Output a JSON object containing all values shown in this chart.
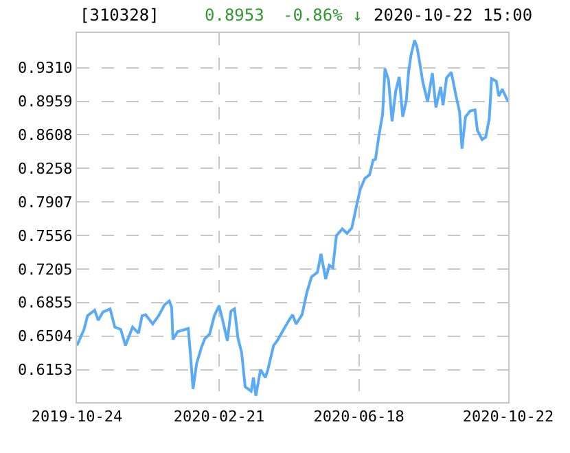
{
  "chart_data": {
    "type": "line",
    "title": "[310328]",
    "annotations": [
      "0.8953",
      "-0.86% ↓",
      "2020-10-22 15:00"
    ],
    "x": [
      "2019-10-24",
      "2019-10-30",
      "2019-11-02",
      "2019-11-08",
      "2019-11-11",
      "2019-11-15",
      "2019-11-21",
      "2019-11-25",
      "2019-11-30",
      "2019-12-04",
      "2019-12-10",
      "2019-12-15",
      "2019-12-18",
      "2019-12-21",
      "2019-12-27",
      "2020-01-01",
      "2020-01-06",
      "2020-01-10",
      "2020-01-12",
      "2020-01-13",
      "2020-01-17",
      "2020-01-26",
      "2020-01-28",
      "2020-01-30",
      "2020-02-02",
      "2020-02-06",
      "2020-02-09",
      "2020-02-13",
      "2020-02-17",
      "2020-02-21",
      "2020-02-24",
      "2020-02-28",
      "2020-03-02",
      "2020-03-05",
      "2020-03-08",
      "2020-03-11",
      "2020-03-14",
      "2020-03-19",
      "2020-03-21",
      "2020-03-23",
      "2020-03-27",
      "2020-03-31",
      "2020-04-02",
      "2020-04-07",
      "2020-04-10",
      "2020-04-15",
      "2020-04-20",
      "2020-04-23",
      "2020-04-26",
      "2020-05-01",
      "2020-05-05",
      "2020-05-09",
      "2020-05-14",
      "2020-05-17",
      "2020-05-21",
      "2020-05-24",
      "2020-05-27",
      "2020-05-30",
      "2020-06-04",
      "2020-06-08",
      "2020-06-12",
      "2020-06-16",
      "2020-06-19",
      "2020-06-23",
      "2020-06-27",
      "2020-06-30",
      "2020-07-02",
      "2020-07-05",
      "2020-07-08",
      "2020-07-10",
      "2020-07-13",
      "2020-07-16",
      "2020-07-19",
      "2020-07-22",
      "2020-07-25",
      "2020-07-28",
      "2020-07-30",
      "2020-08-01",
      "2020-08-04",
      "2020-08-06",
      "2020-08-08",
      "2020-08-11",
      "2020-08-15",
      "2020-08-19",
      "2020-08-22",
      "2020-08-26",
      "2020-08-28",
      "2020-08-31",
      "2020-09-04",
      "2020-09-08",
      "2020-09-11",
      "2020-09-13",
      "2020-09-16",
      "2020-09-20",
      "2020-09-24",
      "2020-09-26",
      "2020-09-30",
      "2020-10-03",
      "2020-10-06",
      "2020-10-08",
      "2020-10-12",
      "2020-10-14",
      "2020-10-17",
      "2020-10-22"
    ],
    "series": [
      {
        "color": "#5aaaf7",
        "values": [
          0.6406,
          0.6574,
          0.6717,
          0.6775,
          0.667,
          0.6756,
          0.6789,
          0.6598,
          0.6574,
          0.6406,
          0.6598,
          0.6535,
          0.6717,
          0.6727,
          0.6631,
          0.6717,
          0.6832,
          0.6871,
          0.6803,
          0.6469,
          0.655,
          0.6584,
          0.6287,
          0.5952,
          0.6215,
          0.6383,
          0.6478,
          0.6526,
          0.6717,
          0.6822,
          0.667,
          0.6455,
          0.6765,
          0.6789,
          0.6478,
          0.6334,
          0.5975,
          0.5928,
          0.6071,
          0.5881,
          0.6153,
          0.6071,
          0.6143,
          0.6406,
          0.6455,
          0.6563,
          0.667,
          0.6727,
          0.6631,
          0.6727,
          0.6957,
          0.7123,
          0.7172,
          0.7363,
          0.71,
          0.7244,
          0.7219,
          0.7554,
          0.7625,
          0.7578,
          0.7635,
          0.7865,
          0.8033,
          0.8152,
          0.8191,
          0.8343,
          0.8353,
          0.8607,
          0.8822,
          0.93,
          0.918,
          0.875,
          0.906,
          0.9214,
          0.8798,
          0.8966,
          0.9276,
          0.9443,
          0.9597,
          0.953,
          0.9386,
          0.9156,
          0.8956,
          0.9253,
          0.8894,
          0.9109,
          0.8917,
          0.9204,
          0.9261,
          0.9013,
          0.8845,
          0.8463,
          0.8798,
          0.8859,
          0.8869,
          0.8654,
          0.8558,
          0.8583,
          0.8773,
          0.9195,
          0.9167,
          0.9013,
          0.9085,
          0.8953
        ]
      }
    ],
    "xlim": [
      "2019-10-24",
      "2020-10-22"
    ],
    "xticks": [
      "2019-10-24",
      "2020-02-21",
      "2020-06-18",
      "2020-10-22"
    ],
    "ylim": [
      0.5813,
      0.9673
    ],
    "yticks": [
      0.6153,
      0.6504,
      0.6855,
      0.7205,
      0.7556,
      0.7907,
      0.8258,
      0.8608,
      0.8959,
      {
        "value": 0.931,
        "label": "0.9310"
      }
    ],
    "grid": true,
    "line_style": "solid",
    "marker": "none"
  }
}
